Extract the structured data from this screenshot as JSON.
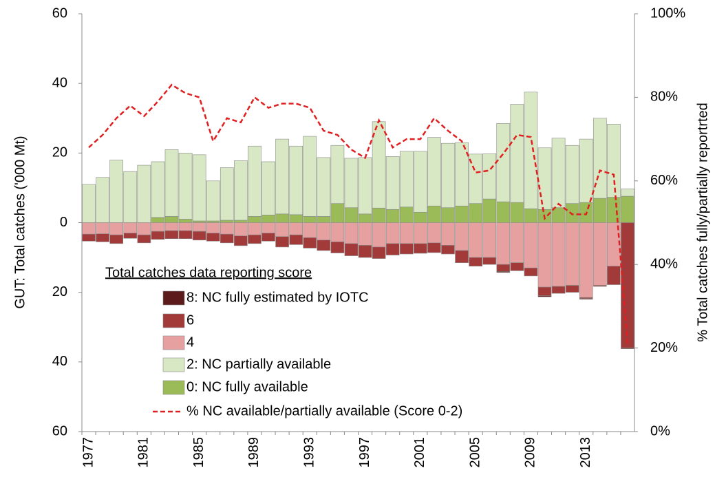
{
  "chart_data": {
    "type": "bar",
    "y_axis_title": "GUT: Total catches ('000 Mt)",
    "y2_axis_title": "% Total catches fully/partially reportrted",
    "legend_title": "Total catches data reporting score",
    "categories": [
      "1977",
      null,
      null,
      null,
      "1981",
      null,
      null,
      null,
      "1985",
      null,
      null,
      null,
      "1989",
      null,
      null,
      null,
      "1993",
      null,
      null,
      null,
      "1997",
      null,
      null,
      null,
      "2001",
      null,
      null,
      null,
      "2005",
      null,
      null,
      null,
      "2009",
      null,
      null,
      null,
      "2013",
      null,
      null,
      null
    ],
    "ylim": [
      -60,
      60
    ],
    "yticks": [
      {
        "value": -60,
        "label": "60"
      },
      {
        "value": -40,
        "label": "40"
      },
      {
        "value": -20,
        "label": "20"
      },
      0,
      20,
      40,
      60
    ],
    "negative_tick_color": "#ff0000",
    "y2lim": [
      0,
      100
    ],
    "y2ticks": [
      {
        "value": 0,
        "label": "0%"
      },
      {
        "value": 20,
        "label": "20%"
      },
      {
        "value": 40,
        "label": "40%"
      },
      {
        "value": 60,
        "label": "60%"
      },
      {
        "value": 80,
        "label": "80%"
      },
      {
        "value": 100,
        "label": "100%"
      }
    ],
    "grid": false,
    "series": [
      {
        "name": "8: NC fully estimated by IOTC",
        "color": "#5c1a1a",
        "values": [
          0,
          0,
          0,
          0,
          0,
          0,
          0,
          0,
          0,
          0,
          0,
          0,
          0,
          0,
          0,
          0,
          0,
          0,
          0,
          0,
          0,
          0,
          0,
          0,
          0,
          0,
          0,
          0,
          0,
          0,
          -0.3,
          0,
          0,
          -0.3,
          0,
          0,
          -0.2,
          0,
          0,
          -0.2
        ]
      },
      {
        "name": "6",
        "color": "#a33a3a",
        "values": [
          -2,
          -2.3,
          -2.5,
          -1.5,
          -2.3,
          -2.3,
          -2.3,
          -2.3,
          -2.5,
          -2.3,
          -2.5,
          -2.8,
          -2.5,
          -2.3,
          -3,
          -2.8,
          -3,
          -3,
          -3.2,
          -3.5,
          -3.5,
          -3.3,
          -3.3,
          -3,
          -2.8,
          -2.8,
          -2.5,
          -3.5,
          -2.5,
          -2,
          -2,
          -2.3,
          -2.3,
          -2.5,
          -2,
          -2,
          -0.3,
          -0.3,
          -5.3,
          -36
        ]
      },
      {
        "name": "4",
        "color": "#e6a0a0",
        "values": [
          -3.3,
          -3.2,
          -3.5,
          -3,
          -3.5,
          -2.5,
          -2.3,
          -2.3,
          -2.5,
          -3,
          -3.3,
          -3.8,
          -3.5,
          -3,
          -4,
          -3.5,
          -4.3,
          -5,
          -5.5,
          -6,
          -6.5,
          -7,
          -6,
          -6,
          -6,
          -5.8,
          -6.5,
          -8,
          -10,
          -10,
          -12,
          -11.5,
          -13,
          -18.5,
          -18.3,
          -18,
          -21.5,
          -18,
          -12.5,
          0
        ]
      },
      {
        "name": "2: NC partially available",
        "color": "#d8e8c4",
        "values": [
          11,
          13,
          18,
          14.7,
          16.5,
          16,
          19.2,
          19,
          19,
          11.5,
          15.1,
          17.1,
          20.2,
          15.3,
          21.5,
          19.7,
          23,
          16.9,
          16.7,
          14.2,
          16.2,
          24.8,
          15.2,
          16,
          17.5,
          19.7,
          18.5,
          18.2,
          14.2,
          13,
          22.5,
          28.2,
          33.5,
          17.7,
          20,
          16.7,
          18.2,
          23,
          21,
          2.1
        ]
      },
      {
        "name": "0: NC fully available",
        "color": "#9bbb59",
        "values": [
          0,
          0,
          0,
          0,
          0,
          1.5,
          1.8,
          1,
          0.5,
          0.5,
          0.7,
          0.7,
          1.8,
          2.2,
          2.5,
          2.3,
          1.8,
          1.8,
          5.5,
          4.3,
          2.5,
          4.2,
          3.8,
          4.5,
          3,
          4.8,
          4.3,
          4.8,
          5.5,
          6.8,
          6,
          5.8,
          4,
          3.8,
          4.3,
          5.5,
          5.8,
          7,
          7.3,
          7.6
        ]
      },
      {
        "name": "% NC available/partially available (Score 0-2)",
        "color": "#e02020",
        "type": "line",
        "line_style": "dashed",
        "axis": "y2",
        "values": [
          68,
          71,
          75,
          78,
          75.5,
          79,
          83,
          81,
          80,
          69.5,
          75,
          74,
          80,
          77.5,
          78.5,
          78.5,
          77.5,
          72,
          71,
          67.5,
          65.5,
          74.5,
          68,
          70,
          70,
          75,
          72,
          69.5,
          62,
          62.5,
          66.5,
          71,
          70.5,
          51,
          54.5,
          52,
          52,
          62.5,
          61.5,
          21
        ]
      }
    ]
  }
}
